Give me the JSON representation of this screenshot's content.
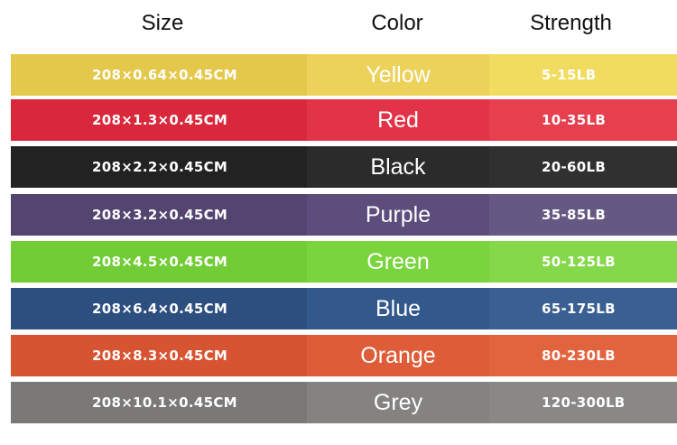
{
  "header": {
    "size": "Size",
    "color": "Color",
    "strength": "Strength"
  },
  "rows": [
    {
      "size": "208×0.64×0.45CM",
      "color": "Yellow",
      "strength": "5-15LB",
      "c1": "#e4c84c",
      "c2": "#ecd25a",
      "c3": "#f2dc60"
    },
    {
      "size": "208×1.3×0.45CM",
      "color": "Red",
      "strength": "10-35LB",
      "c1": "#d9283c",
      "c2": "#e23448",
      "c3": "#e6404f"
    },
    {
      "size": "208×2.2×0.45CM",
      "color": "Black",
      "strength": "20-60LB",
      "c1": "#222222",
      "c2": "#2b2b2b",
      "c3": "#303030"
    },
    {
      "size": "208×3.2×0.45CM",
      "color": "Purple",
      "strength": "35-85LB",
      "c1": "#534470",
      "c2": "#5c4d7c",
      "c3": "#655882"
    },
    {
      "size": "208×4.5×0.45CM",
      "color": "Green",
      "strength": "50-125LB",
      "c1": "#72cc36",
      "c2": "#7ad43d",
      "c3": "#84d84a"
    },
    {
      "size": "208×6.4×0.45CM",
      "color": "Blue",
      "strength": "65-175LB",
      "c1": "#2c4f80",
      "c2": "#33588c",
      "c3": "#3a5f92"
    },
    {
      "size": "208×8.3×0.45CM",
      "color": "Orange",
      "strength": "80-230LB",
      "c1": "#d65432",
      "c2": "#de5d38",
      "c3": "#e2643f"
    },
    {
      "size": "208×10.1×0.45CM",
      "color": "Grey",
      "strength": "120-300LB",
      "c1": "#7b7978",
      "c2": "#858382",
      "c3": "#8a8887"
    }
  ]
}
